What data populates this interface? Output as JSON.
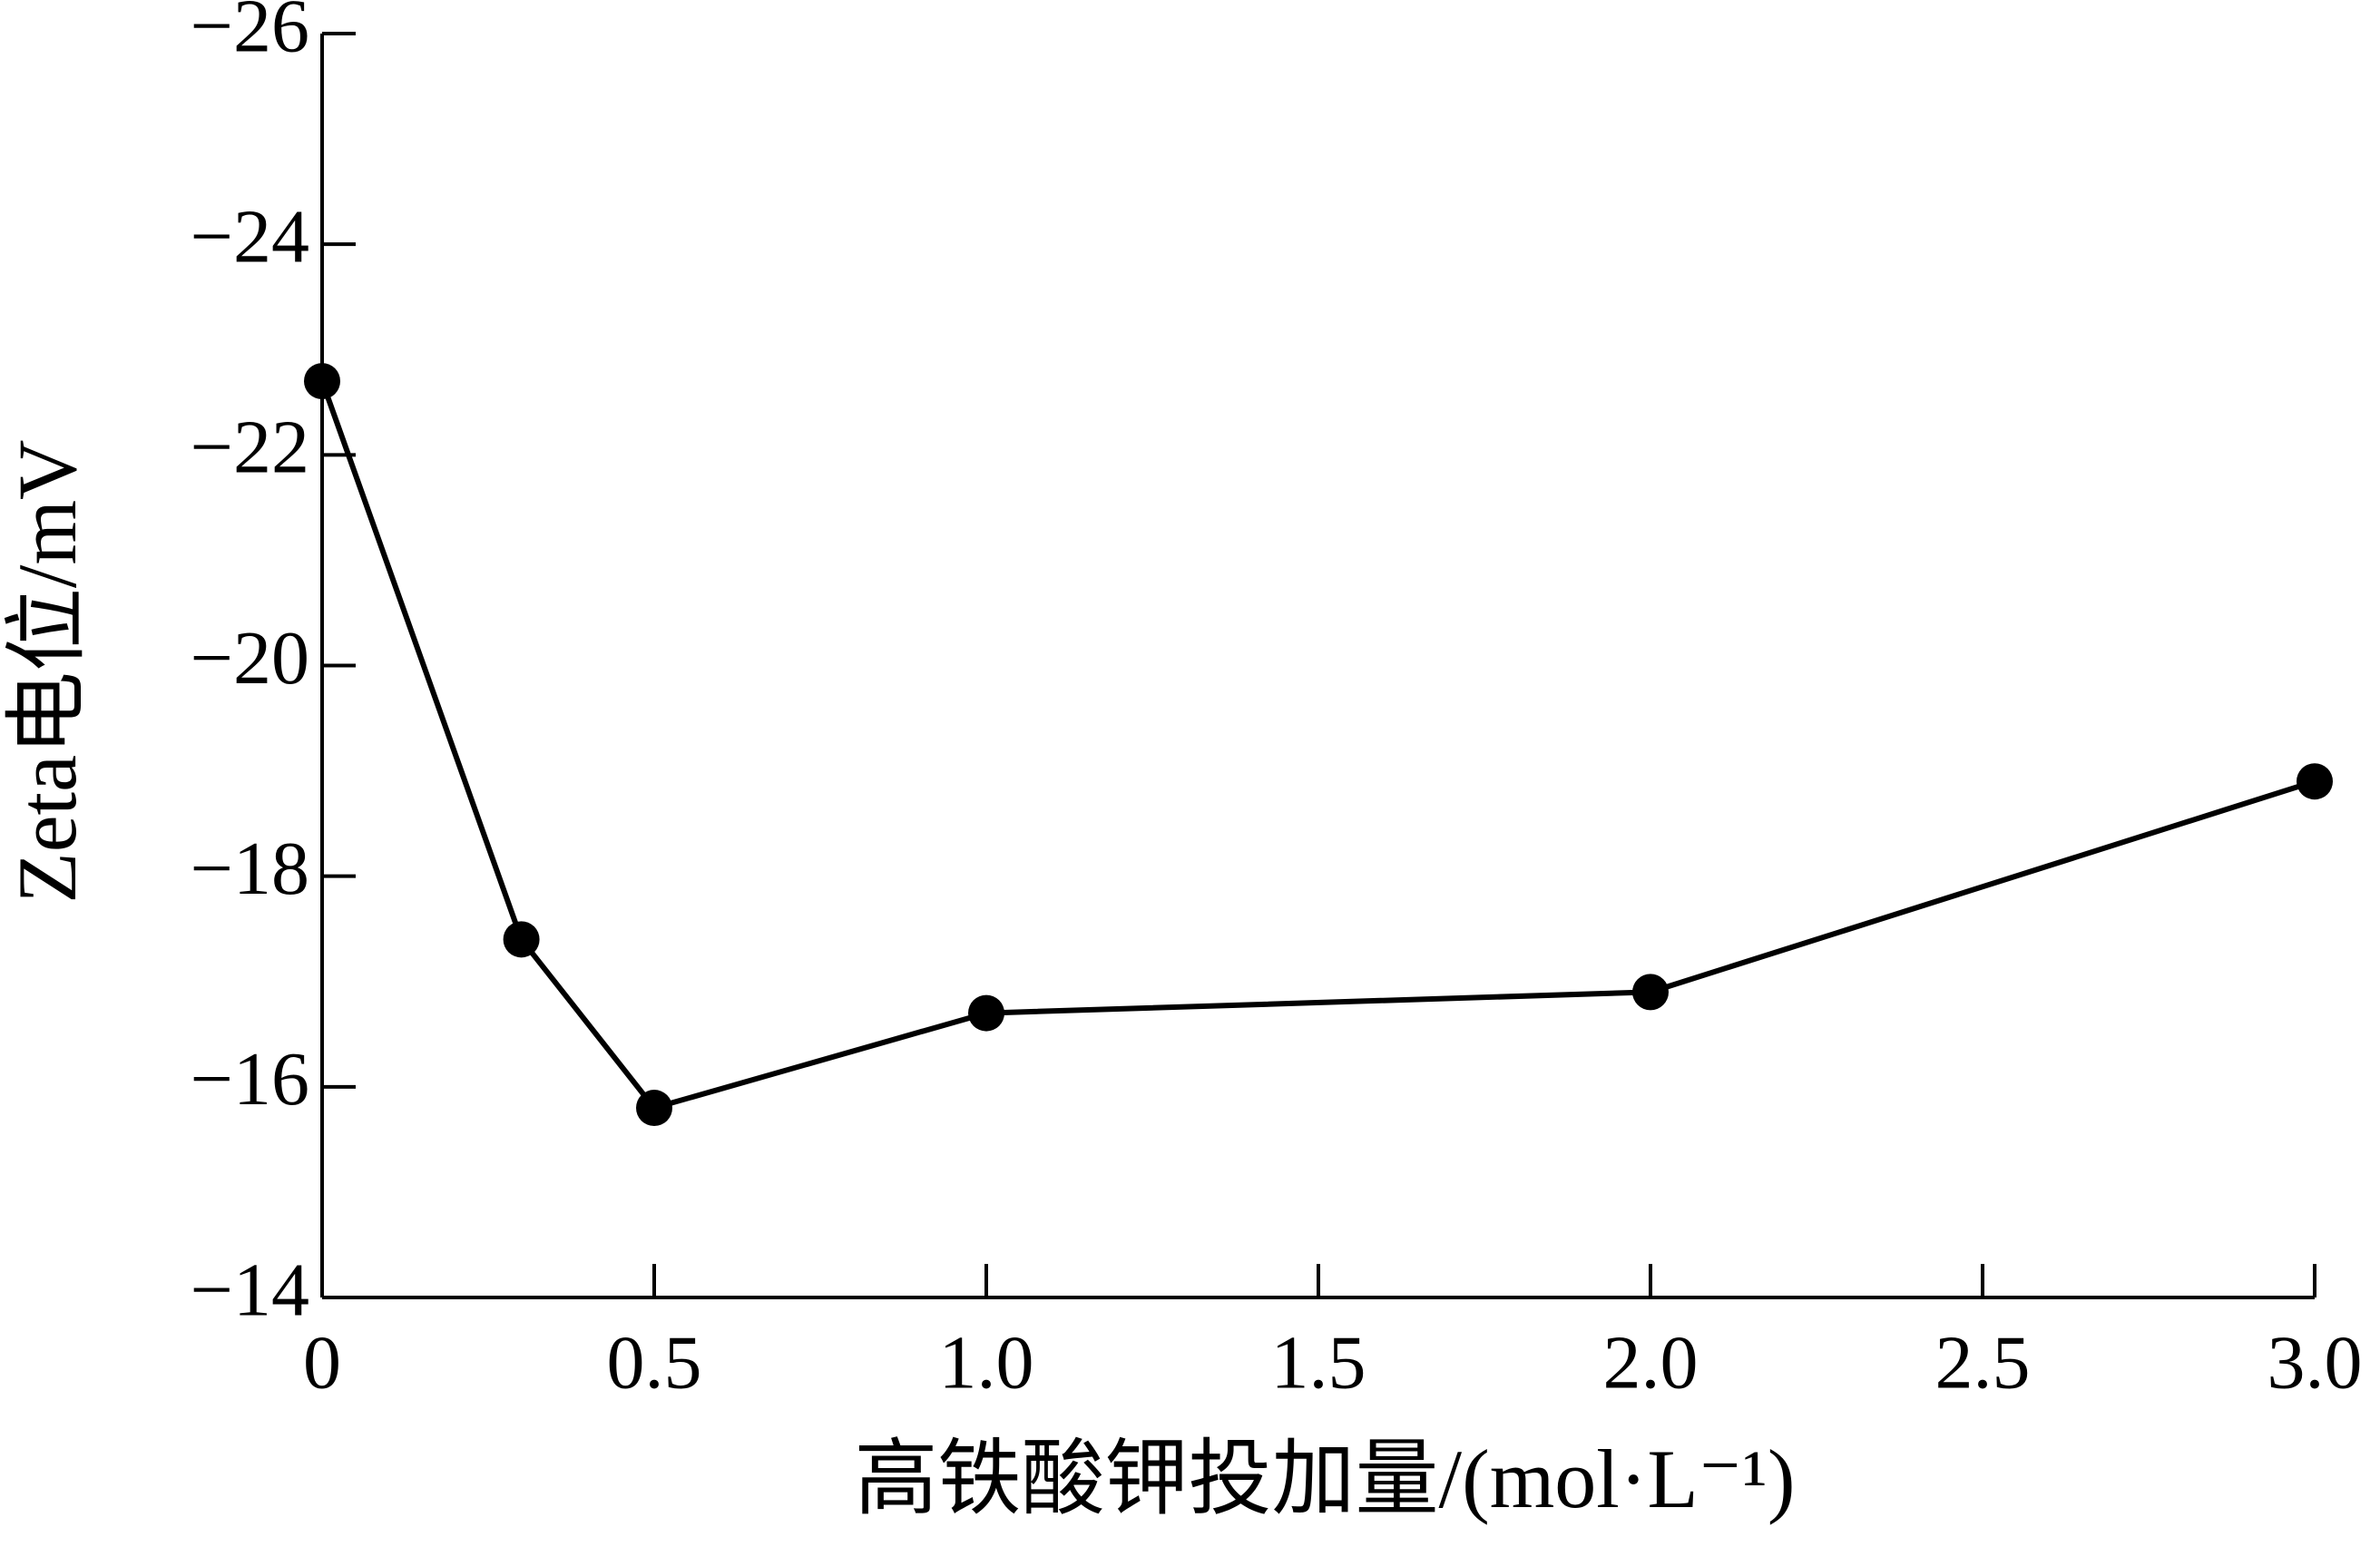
{
  "chart_data": {
    "type": "line",
    "xlabel": "高铁酸钾投加量/(mol·L⁻¹)",
    "ylabel": "Zeta电位/mV",
    "x": [
      0,
      0.3,
      0.5,
      1.0,
      2.0,
      3.0
    ],
    "series": [
      {
        "name": "Zeta",
        "color": "#000000",
        "values": [
          -22.7,
          -17.4,
          -15.8,
          -16.7,
          -16.9,
          -18.9
        ]
      }
    ],
    "xlim": [
      0,
      3
    ],
    "xticks": [
      0,
      0.5,
      {
        "value": 1,
        "label": "1.0"
      },
      1.5,
      {
        "value": 2,
        "label": "2.0"
      },
      2.5,
      {
        "value": 3,
        "label": "3.0"
      }
    ],
    "ylim": [
      -14,
      -26
    ],
    "yticks": [
      {
        "value": -14,
        "label": "−14"
      },
      {
        "value": -16,
        "label": "−16"
      },
      {
        "value": -18,
        "label": "−18"
      },
      {
        "value": -20,
        "label": "−20"
      },
      {
        "value": -22,
        "label": "−22"
      },
      {
        "value": -24,
        "label": "−24"
      },
      {
        "value": -26,
        "label": "−26"
      }
    ],
    "grid": false
  }
}
